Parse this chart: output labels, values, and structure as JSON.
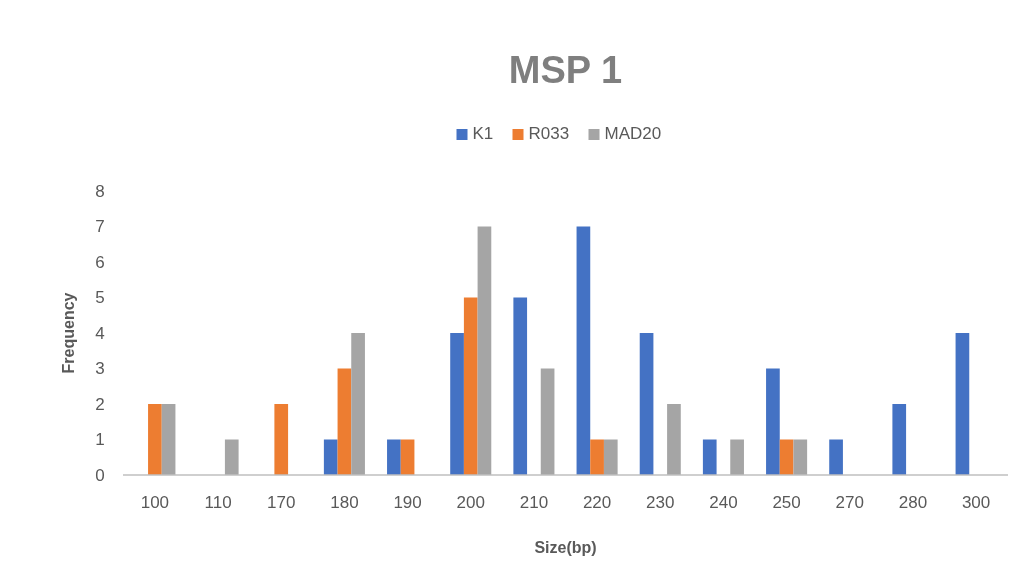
{
  "chart_data": {
    "type": "bar",
    "title": "MSP 1",
    "xlabel": "Size(bp)",
    "ylabel": "Frequency",
    "categories": [
      "100",
      "110",
      "170",
      "180",
      "190",
      "200",
      "210",
      "220",
      "230",
      "240",
      "250",
      "270",
      "280",
      "300"
    ],
    "series": [
      {
        "name": "K1",
        "color": "#4472c4",
        "values": [
          0,
          0,
          0,
          1,
          1,
          4,
          5,
          7,
          4,
          1,
          3,
          1,
          2,
          4
        ]
      },
      {
        "name": "R033",
        "color": "#ed7d31",
        "values": [
          2,
          0,
          2,
          3,
          1,
          5,
          0,
          1,
          0,
          0,
          1,
          0,
          0,
          0
        ]
      },
      {
        "name": "MAD20",
        "color": "#a5a5a5",
        "values": [
          2,
          1,
          0,
          4,
          0,
          7,
          3,
          1,
          2,
          1,
          1,
          0,
          0,
          0
        ]
      }
    ],
    "ylim": [
      0,
      8
    ],
    "yticks": [
      0,
      1,
      2,
      3,
      4,
      5,
      6,
      7,
      8
    ],
    "grid": false,
    "legend": "top"
  }
}
